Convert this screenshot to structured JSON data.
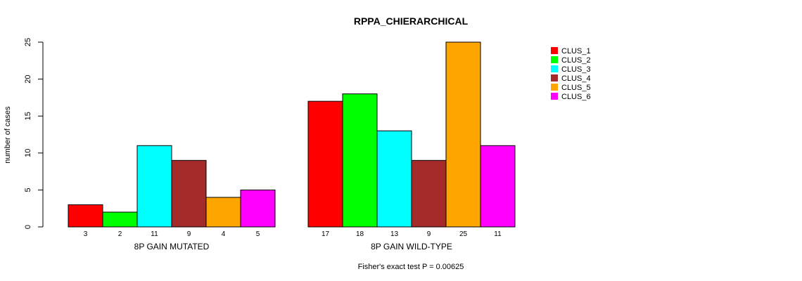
{
  "chart_data": {
    "type": "bar",
    "title": "RPPA_CHIERARCHICAL",
    "ylabel": "number of cases",
    "xlabel": "Fisher's exact test P = 0.00625",
    "ylim": [
      0,
      25
    ],
    "yticks": [
      0,
      5,
      10,
      15,
      20,
      25
    ],
    "groups": [
      "8P GAIN MUTATED",
      "8P GAIN WILD-TYPE"
    ],
    "series": [
      {
        "name": "CLUS_1",
        "color": "#ff0000",
        "values": [
          3,
          17
        ]
      },
      {
        "name": "CLUS_2",
        "color": "#00ff00",
        "values": [
          2,
          18
        ]
      },
      {
        "name": "CLUS_3",
        "color": "#00ffff",
        "values": [
          11,
          13
        ]
      },
      {
        "name": "CLUS_4",
        "color": "#a52a2a",
        "values": [
          9,
          9
        ]
      },
      {
        "name": "CLUS_5",
        "color": "#ffa500",
        "values": [
          4,
          25
        ]
      },
      {
        "name": "CLUS_6",
        "color": "#ff00ff",
        "values": [
          5,
          11
        ]
      }
    ],
    "legend_position": "top-right"
  }
}
